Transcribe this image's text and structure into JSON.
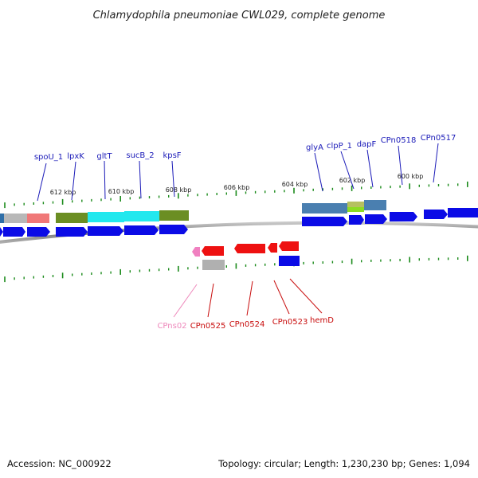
{
  "title": "Chlamydophila pneumoniae CWL029, complete genome",
  "footer": {
    "accession": "Accession: NC_000922",
    "summary": "Topology: circular; Length: 1,230,230 bp; Genes: 1,094"
  },
  "scale": {
    "tick_labels": [
      "612 kbp",
      "610 kbp",
      "608 kbp",
      "606 kbp",
      "604 kbp",
      "602 kbp",
      "600 kbp"
    ]
  },
  "labels": {
    "top": [
      "spoU_1",
      "lpxK",
      "gltT",
      "sucB_2",
      "kpsF",
      "glyA",
      "clpP_1",
      "dapF",
      "CPn0518",
      "CPn0517"
    ],
    "bottom": [
      "CPns02",
      "CPn0525",
      "CPn0524",
      "CPn0523",
      "hemD"
    ]
  },
  "colors": {
    "forward_gene": "#0b0be6",
    "reverse_gene": "#ee1111",
    "label_top": "#1a1ab8",
    "label_bottom": "#c80c0c",
    "label_ncrna": "#ee88bb",
    "tick": "#1a8a1a",
    "backbone": "#808080"
  }
}
